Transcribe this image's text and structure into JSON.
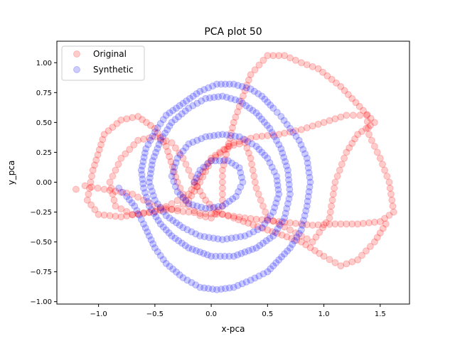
{
  "chart_data": {
    "type": "scatter",
    "title": "PCA plot 50",
    "xlabel": "x-pca",
    "ylabel": "y_pca",
    "xlim": [
      -1.37,
      1.76
    ],
    "ylim": [
      -1.02,
      1.18
    ],
    "xticks": [
      -1.0,
      -0.5,
      0.0,
      0.5,
      1.0,
      1.5
    ],
    "xtick_labels": [
      "−1.0",
      "−0.5",
      "0.0",
      "0.5",
      "1.0",
      "1.5"
    ],
    "yticks": [
      -1.0,
      -0.75,
      -0.5,
      -0.25,
      0.0,
      0.25,
      0.5,
      0.75,
      1.0
    ],
    "ytick_labels": [
      "−1.00",
      "−0.75",
      "−0.50",
      "−0.25",
      "0.00",
      "0.25",
      "0.50",
      "0.75",
      "1.00"
    ],
    "grid": false,
    "legend_position": "top-left",
    "marker_alpha": 0.2,
    "series": [
      {
        "name": "Original",
        "color": "#ff0000",
        "path_points": [
          [
            -1.2,
            -0.06
          ],
          [
            -1.12,
            -0.03
          ],
          [
            -0.95,
            -0.06
          ],
          [
            -0.7,
            -0.1
          ],
          [
            -0.5,
            -0.2
          ],
          [
            -0.3,
            -0.24
          ],
          [
            -0.1,
            -0.26
          ],
          [
            0.1,
            -0.27
          ],
          [
            0.3,
            -0.3
          ],
          [
            0.5,
            -0.32
          ],
          [
            0.7,
            -0.34
          ],
          [
            0.9,
            -0.36
          ],
          [
            1.1,
            -0.35
          ],
          [
            1.3,
            -0.35
          ],
          [
            1.5,
            -0.33
          ],
          [
            1.62,
            -0.25
          ],
          [
            1.58,
            0.0
          ],
          [
            1.5,
            0.2
          ],
          [
            1.4,
            0.4
          ],
          [
            1.38,
            0.56
          ],
          [
            1.2,
            0.56
          ],
          [
            1.0,
            0.5
          ],
          [
            0.8,
            0.44
          ],
          [
            0.6,
            0.4
          ],
          [
            0.4,
            0.38
          ],
          [
            0.2,
            0.33
          ],
          [
            0.0,
            0.18
          ],
          [
            -0.1,
            0.0
          ],
          [
            -0.2,
            -0.15
          ],
          [
            -0.3,
            -0.22
          ],
          [
            -0.55,
            -0.25
          ],
          [
            -0.8,
            -0.29
          ],
          [
            -1.0,
            -0.27
          ],
          [
            -1.1,
            -0.15
          ],
          [
            -1.05,
            0.1
          ],
          [
            -0.95,
            0.4
          ],
          [
            -0.8,
            0.52
          ],
          [
            -0.65,
            0.55
          ],
          [
            -0.5,
            0.45
          ],
          [
            -0.4,
            0.3
          ],
          [
            -0.3,
            0.0
          ],
          [
            -0.2,
            -0.2
          ],
          [
            -0.1,
            -0.28
          ],
          [
            0.0,
            -0.3
          ],
          [
            0.1,
            -0.2
          ],
          [
            0.1,
            0.1
          ],
          [
            0.2,
            0.5
          ],
          [
            0.35,
            0.9
          ],
          [
            0.5,
            1.06
          ],
          [
            0.65,
            1.06
          ],
          [
            0.8,
            1.0
          ],
          [
            0.95,
            0.95
          ],
          [
            1.15,
            0.8
          ],
          [
            1.35,
            0.6
          ],
          [
            1.45,
            0.5
          ],
          [
            1.3,
            0.4
          ],
          [
            1.2,
            0.25
          ],
          [
            1.1,
            0.0
          ],
          [
            1.05,
            -0.3
          ],
          [
            0.9,
            -0.5
          ],
          [
            0.7,
            -0.4
          ],
          [
            0.5,
            -0.3
          ],
          [
            0.4,
            -0.05
          ],
          [
            0.35,
            0.2
          ],
          [
            0.3,
            0.33
          ],
          [
            0.15,
            0.3
          ],
          [
            0.0,
            0.2
          ],
          [
            -0.1,
            0.05
          ],
          [
            -0.2,
            -0.1
          ],
          [
            -0.35,
            -0.18
          ],
          [
            -0.5,
            -0.25
          ],
          [
            -0.7,
            -0.27
          ],
          [
            -0.85,
            -0.2
          ],
          [
            -0.9,
            0.0
          ],
          [
            -0.8,
            0.2
          ],
          [
            -0.65,
            0.35
          ],
          [
            -0.5,
            0.38
          ],
          [
            -0.35,
            0.33
          ],
          [
            -0.25,
            0.2
          ],
          [
            -0.15,
            0.0
          ],
          [
            -0.05,
            -0.15
          ],
          [
            0.05,
            -0.25
          ],
          [
            0.2,
            -0.3
          ],
          [
            0.5,
            -0.4
          ],
          [
            0.8,
            -0.5
          ],
          [
            1.0,
            -0.62
          ],
          [
            1.15,
            -0.7
          ],
          [
            1.3,
            -0.65
          ],
          [
            1.45,
            -0.5
          ],
          [
            1.55,
            -0.35
          ]
        ]
      },
      {
        "name": "Synthetic",
        "color": "#0000ff",
        "path_points": [
          [
            -0.82,
            -0.05
          ],
          [
            -0.75,
            -0.12
          ],
          [
            -0.68,
            -0.2
          ],
          [
            -0.6,
            -0.35
          ],
          [
            -0.5,
            -0.55
          ],
          [
            -0.4,
            -0.68
          ],
          [
            -0.25,
            -0.8
          ],
          [
            -0.1,
            -0.88
          ],
          [
            0.05,
            -0.9
          ],
          [
            0.2,
            -0.88
          ],
          [
            0.35,
            -0.82
          ],
          [
            0.5,
            -0.75
          ],
          [
            0.6,
            -0.65
          ],
          [
            0.7,
            -0.55
          ],
          [
            0.8,
            -0.4
          ],
          [
            0.85,
            -0.2
          ],
          [
            0.88,
            0.0
          ],
          [
            0.85,
            0.2
          ],
          [
            0.78,
            0.35
          ],
          [
            0.7,
            0.45
          ],
          [
            0.62,
            0.55
          ],
          [
            0.55,
            0.62
          ],
          [
            0.45,
            0.72
          ],
          [
            0.35,
            0.78
          ],
          [
            0.2,
            0.82
          ],
          [
            0.05,
            0.82
          ],
          [
            -0.1,
            0.76
          ],
          [
            -0.25,
            0.66
          ],
          [
            -0.4,
            0.56
          ],
          [
            -0.5,
            0.42
          ],
          [
            -0.58,
            0.28
          ],
          [
            -0.62,
            0.1
          ],
          [
            -0.6,
            -0.05
          ],
          [
            -0.55,
            -0.2
          ],
          [
            -0.45,
            -0.35
          ],
          [
            -0.35,
            -0.45
          ],
          [
            -0.2,
            -0.55
          ],
          [
            0.0,
            -0.62
          ],
          [
            0.2,
            -0.62
          ],
          [
            0.4,
            -0.55
          ],
          [
            0.55,
            -0.45
          ],
          [
            0.65,
            -0.3
          ],
          [
            0.7,
            -0.1
          ],
          [
            0.68,
            0.1
          ],
          [
            0.62,
            0.28
          ],
          [
            0.52,
            0.45
          ],
          [
            0.4,
            0.58
          ],
          [
            0.25,
            0.68
          ],
          [
            0.1,
            0.72
          ],
          [
            -0.05,
            0.7
          ],
          [
            -0.2,
            0.62
          ],
          [
            -0.35,
            0.5
          ],
          [
            -0.45,
            0.35
          ],
          [
            -0.52,
            0.18
          ],
          [
            -0.55,
            0.0
          ],
          [
            -0.5,
            -0.15
          ],
          [
            -0.4,
            -0.28
          ],
          [
            -0.25,
            -0.38
          ],
          [
            -0.1,
            -0.45
          ],
          [
            0.1,
            -0.48
          ],
          [
            0.3,
            -0.45
          ],
          [
            0.45,
            -0.38
          ],
          [
            0.55,
            -0.25
          ],
          [
            0.6,
            -0.1
          ],
          [
            0.58,
            0.05
          ],
          [
            0.5,
            0.2
          ],
          [
            0.4,
            0.3
          ],
          [
            0.25,
            0.38
          ],
          [
            0.1,
            0.4
          ],
          [
            -0.05,
            0.38
          ],
          [
            -0.2,
            0.32
          ],
          [
            -0.3,
            0.2
          ],
          [
            -0.35,
            0.05
          ],
          [
            -0.3,
            -0.08
          ],
          [
            -0.2,
            -0.18
          ],
          [
            -0.05,
            -0.22
          ],
          [
            0.1,
            -0.2
          ],
          [
            0.22,
            -0.12
          ],
          [
            0.28,
            0.0
          ],
          [
            0.25,
            0.12
          ],
          [
            0.15,
            0.18
          ],
          [
            0.0,
            0.18
          ],
          [
            -0.1,
            0.1
          ],
          [
            -0.15,
            0.0
          ]
        ]
      }
    ]
  }
}
